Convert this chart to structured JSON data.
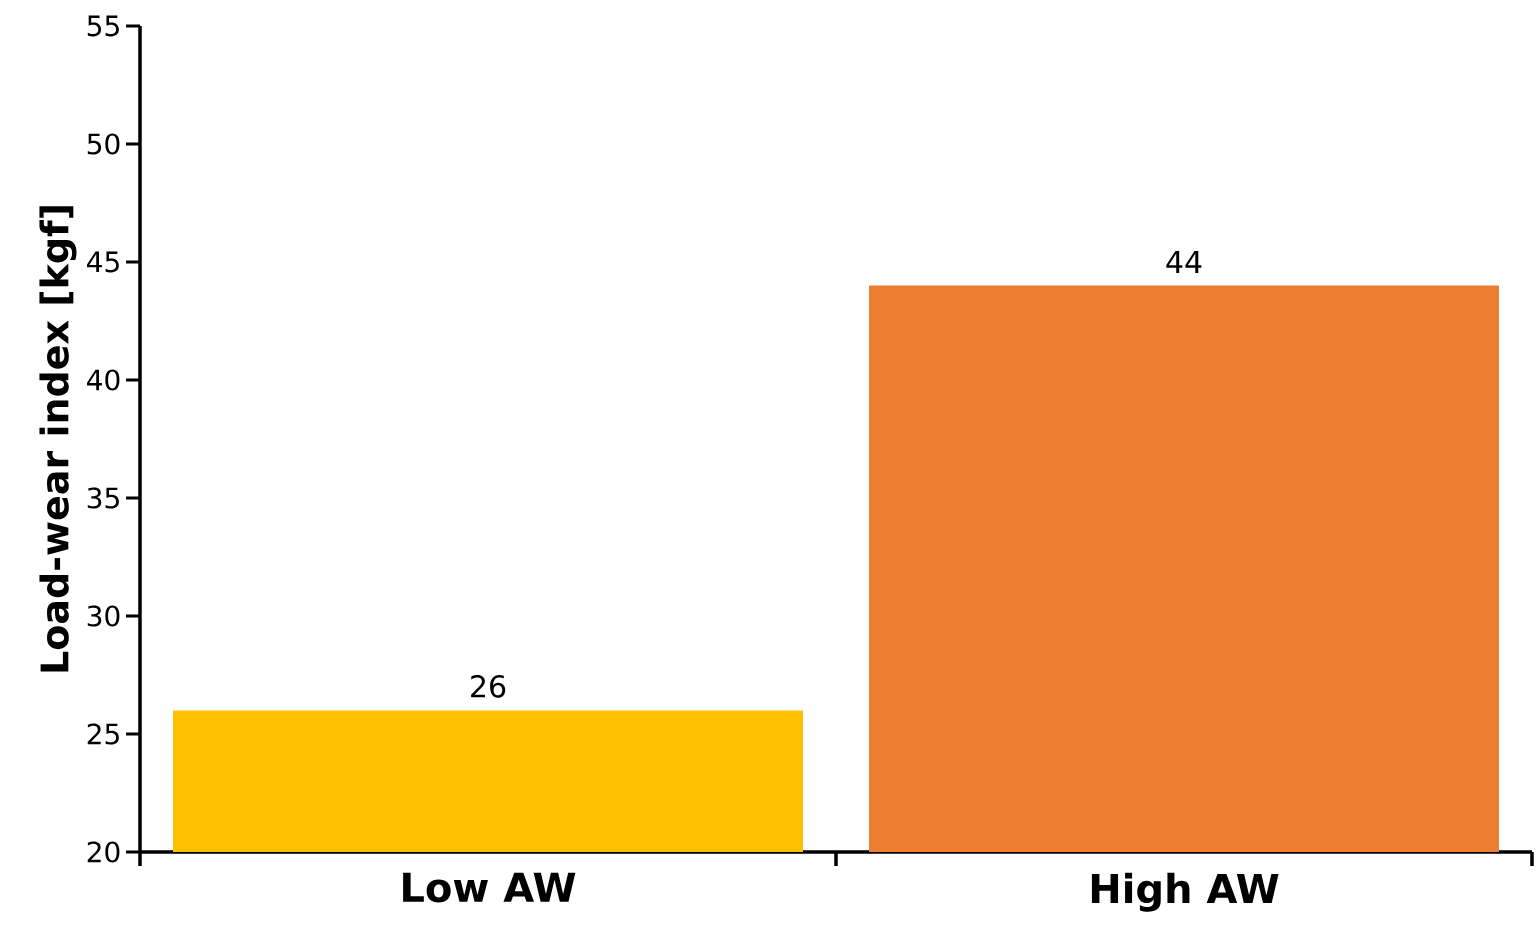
{
  "chart_data": {
    "type": "bar",
    "ylabel": "Load-wear index [kgf]",
    "categories": [
      "Low AW",
      "High AW"
    ],
    "values": [
      26,
      44
    ],
    "colors": [
      "#ffc000",
      "#ed7d31"
    ],
    "ylim": [
      20,
      55
    ],
    "yticks": [
      20,
      25,
      30,
      35,
      40,
      45,
      50,
      55
    ],
    "data_labels": true
  }
}
